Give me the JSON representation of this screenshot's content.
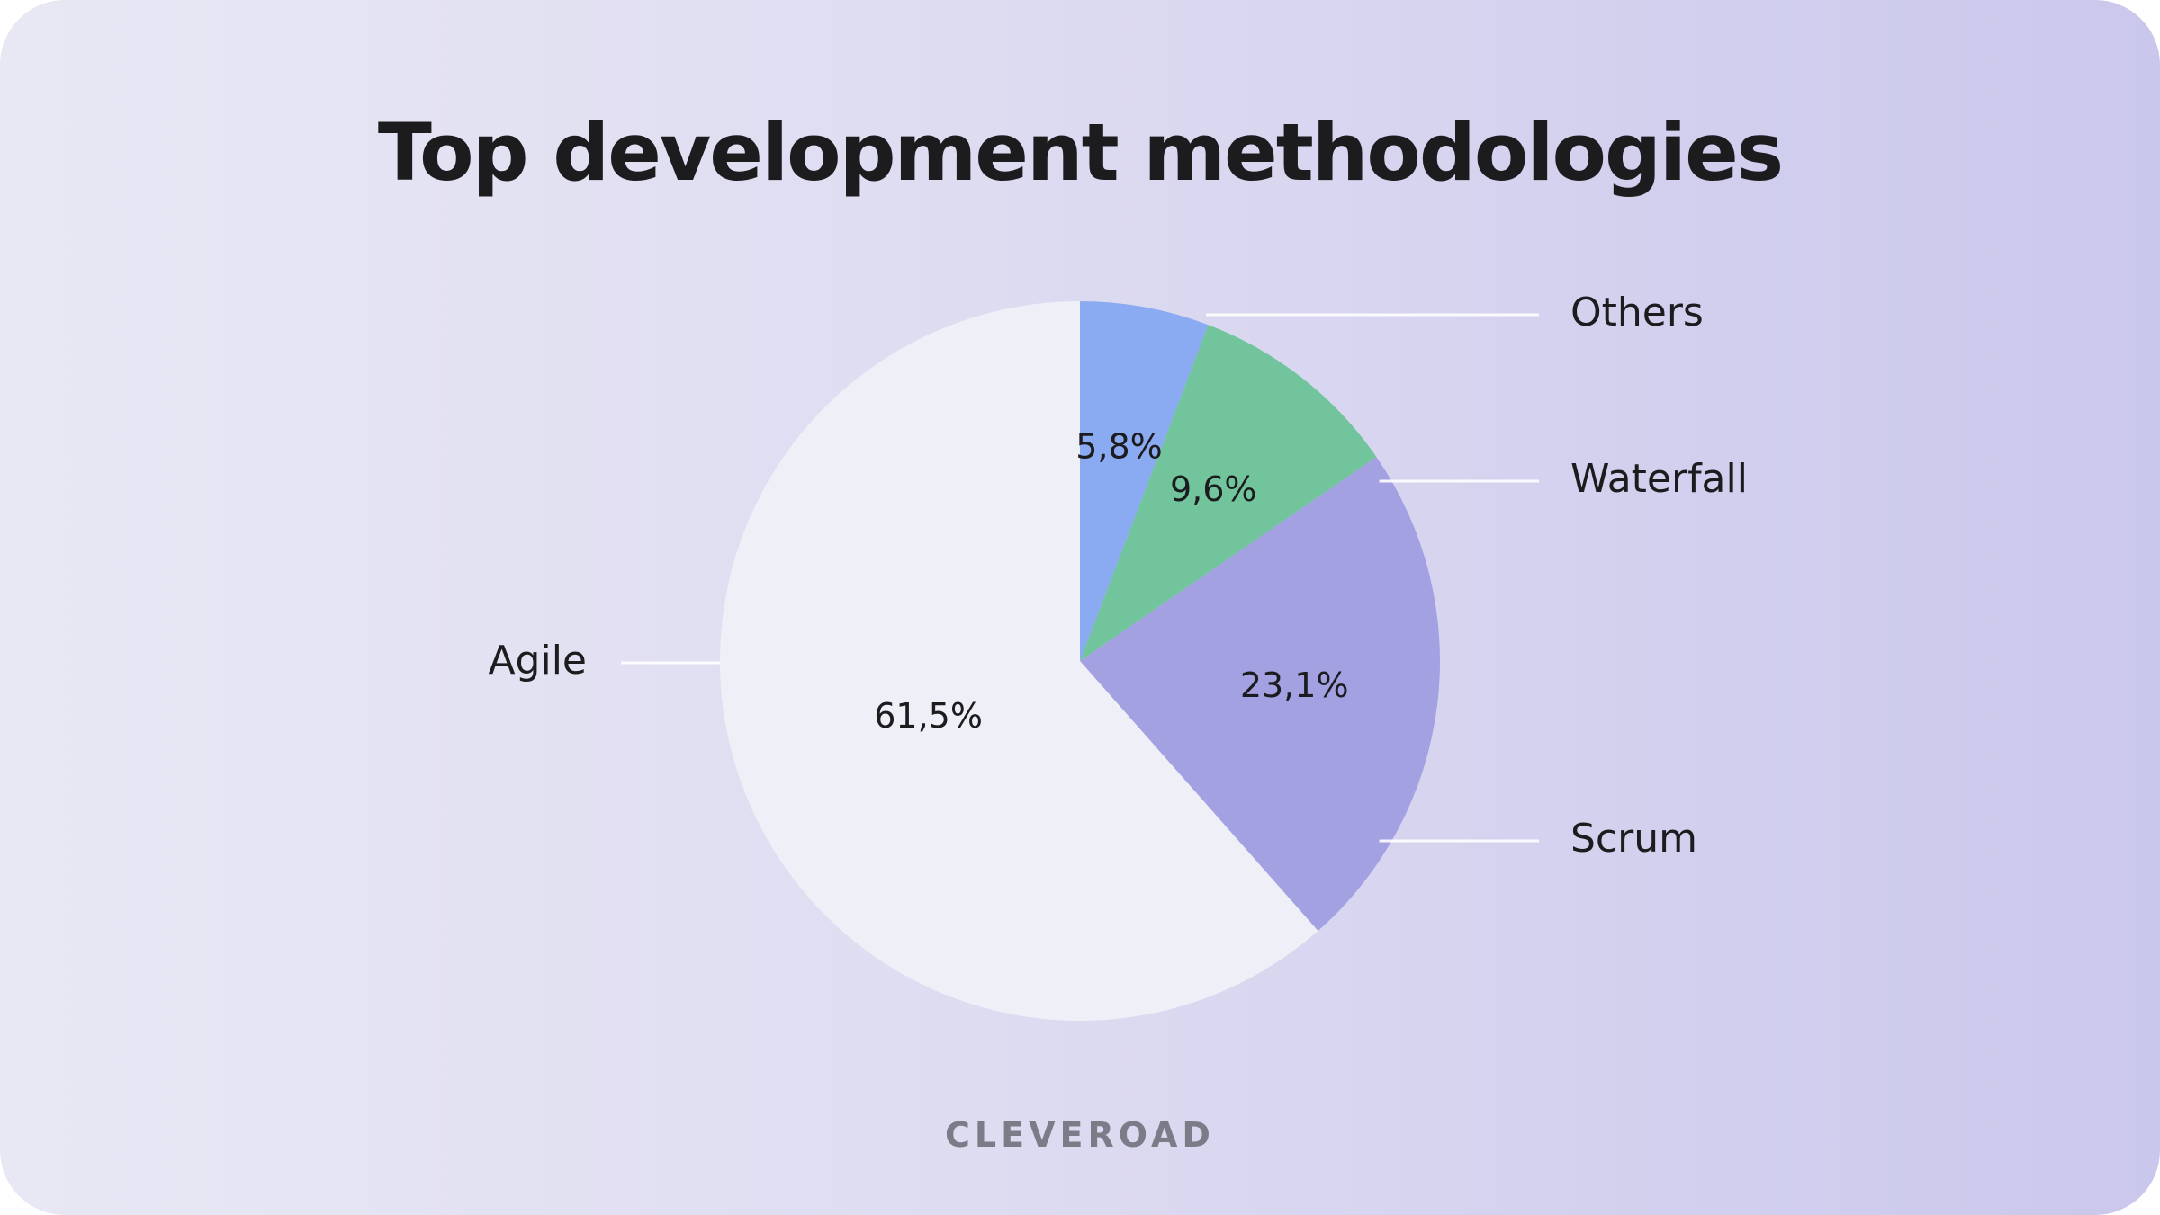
{
  "brand": "CLEVEROAD",
  "chart_data": {
    "type": "pie",
    "title": "Top development methodologies",
    "start_angle_deg": 0,
    "direction": "clockwise",
    "legend_placement": "outside labels with leader lines",
    "slices": [
      {
        "label": "Others",
        "value": 5.8,
        "value_label": "5,8%",
        "color": "#8aaaf2"
      },
      {
        "label": "Waterfall",
        "value": 9.6,
        "value_label": "9,6%",
        "color": "#72c49d"
      },
      {
        "label": "Scrum",
        "value": 23.1,
        "value_label": "23,1%",
        "color": "#a3a1e1"
      },
      {
        "label": "Agile",
        "value": 61.5,
        "value_label": "61,5%",
        "color": "#efeff8"
      }
    ]
  }
}
